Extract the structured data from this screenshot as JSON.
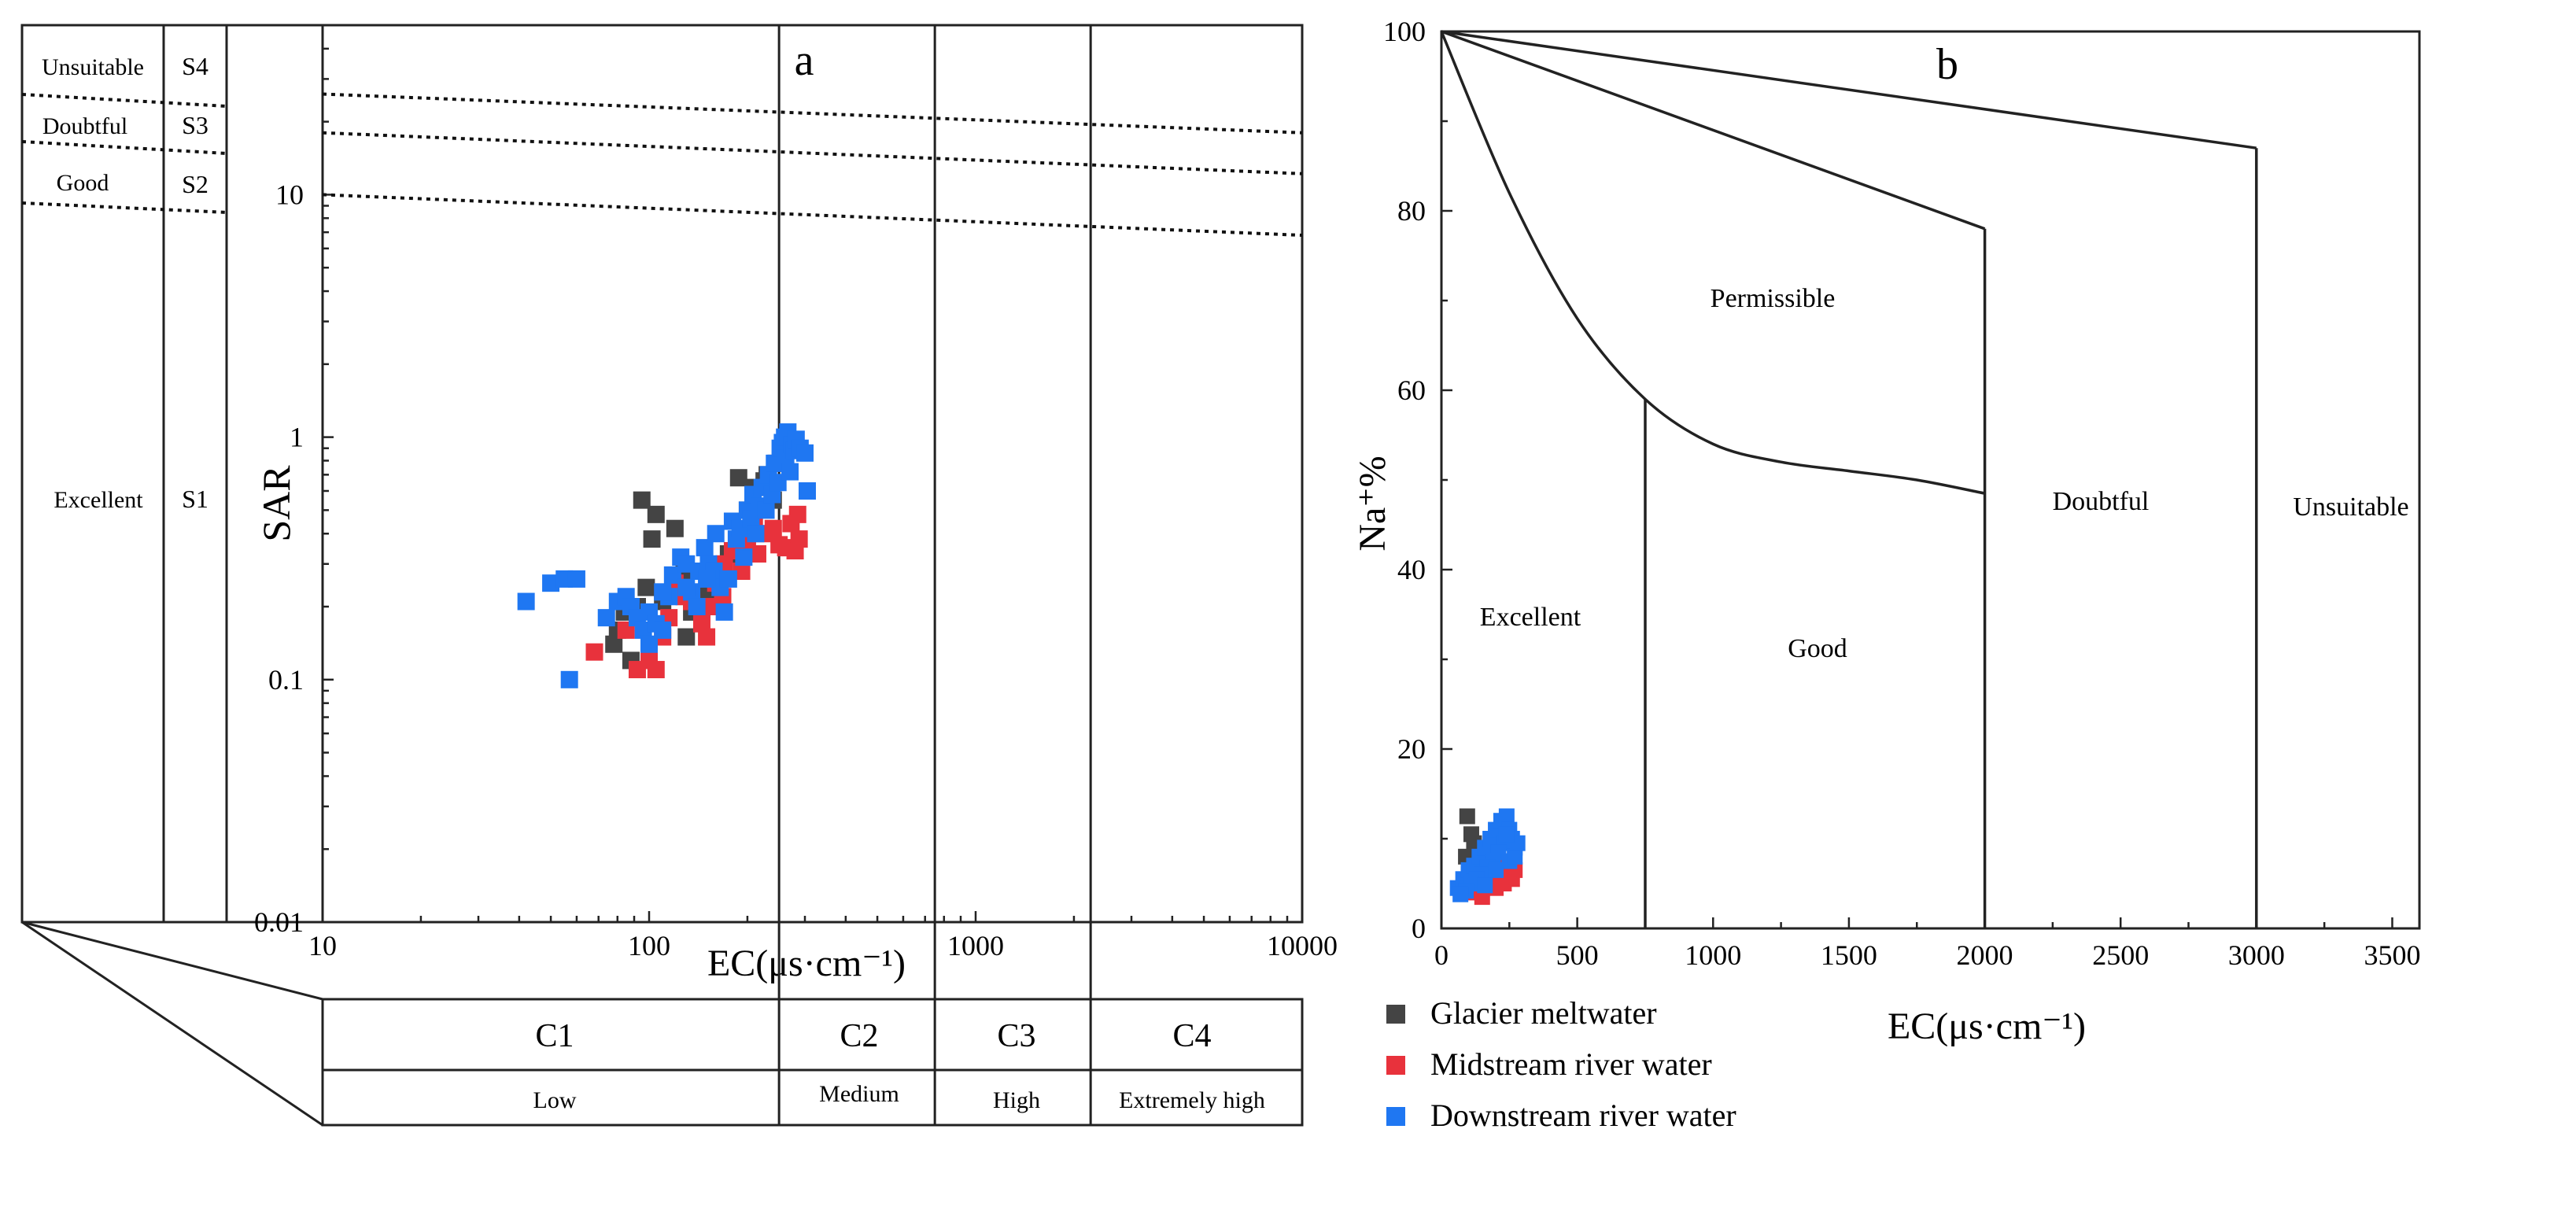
{
  "chart_data": [
    {
      "panel": "a",
      "type": "scatter",
      "xlabel": "EC(μs·cm⁻¹)",
      "ylabel": "SAR",
      "xscale": "log",
      "yscale": "log",
      "xlim": [
        10,
        10000
      ],
      "ylim": [
        0.01,
        50
      ],
      "xticks": [
        "10",
        "100",
        "1000",
        "10000"
      ],
      "yticks": [
        "0.01",
        "0.1",
        "1",
        "10"
      ],
      "x_boundaries": [
        250,
        750,
        2250
      ],
      "sodium_hazard_classes": [
        {
          "code": "S4",
          "label": "Unsuitable"
        },
        {
          "code": "S3",
          "label": "Doubtful"
        },
        {
          "code": "S2",
          "label": "Good"
        },
        {
          "code": "S1",
          "label": "Excellent"
        }
      ],
      "salinity_classes": [
        {
          "code": "C1",
          "label": "Low"
        },
        {
          "code": "C2",
          "label": "Medium"
        },
        {
          "code": "C3",
          "label": "High"
        },
        {
          "code": "C4",
          "label": "Extremely high"
        }
      ],
      "hazard_lines": [
        {
          "x": [
            10,
            10000
          ],
          "y": [
            26,
            18
          ]
        },
        {
          "x": [
            10,
            10000
          ],
          "y": [
            18,
            12.2
          ]
        },
        {
          "x": [
            10,
            10000
          ],
          "y": [
            10,
            6.8
          ]
        }
      ],
      "series": [
        {
          "name": "Glacier meltwater",
          "color": "#444444",
          "points": [
            [
              95,
              0.55
            ],
            [
              105,
              0.48
            ],
            [
              102,
              0.38
            ],
            [
              120,
              0.42
            ],
            [
              84,
              0.19
            ],
            [
              80,
              0.16
            ],
            [
              78,
              0.14
            ],
            [
              88,
              0.12
            ],
            [
              92,
              0.2
            ],
            [
              98,
              0.24
            ],
            [
              110,
              0.21
            ],
            [
              130,
              0.15
            ],
            [
              135,
              0.19
            ],
            [
              150,
              0.23
            ],
            [
              165,
              0.29
            ],
            [
              175,
              0.33
            ],
            [
              200,
              0.5
            ],
            [
              210,
              0.62
            ],
            [
              225,
              0.66
            ],
            [
              230,
              0.7
            ],
            [
              245,
              0.78
            ],
            [
              188,
              0.68
            ],
            [
              240,
              0.55
            ],
            [
              128,
              0.28
            ]
          ]
        },
        {
          "name": "Midstream river water",
          "color": "#e8323c",
          "points": [
            [
              68,
              0.13
            ],
            [
              85,
              0.16
            ],
            [
              92,
              0.11
            ],
            [
              100,
              0.12
            ],
            [
              105,
              0.11
            ],
            [
              110,
              0.15
            ],
            [
              115,
              0.18
            ],
            [
              120,
              0.25
            ],
            [
              128,
              0.22
            ],
            [
              135,
              0.21
            ],
            [
              145,
              0.17
            ],
            [
              150,
              0.15
            ],
            [
              155,
              0.2
            ],
            [
              160,
              0.25
            ],
            [
              170,
              0.3
            ],
            [
              180,
              0.34
            ],
            [
              190,
              0.36
            ],
            [
              200,
              0.37
            ],
            [
              215,
              0.33
            ],
            [
              225,
              0.4
            ],
            [
              240,
              0.42
            ],
            [
              250,
              0.36
            ],
            [
              262,
              0.35
            ],
            [
              272,
              0.44
            ],
            [
              280,
              0.34
            ],
            [
              285,
              0.48
            ],
            [
              288,
              0.38
            ],
            [
              168,
              0.22
            ],
            [
              192,
              0.28
            ],
            [
              210,
              0.45
            ]
          ]
        },
        {
          "name": "Downstream river water",
          "color": "#1f77f2",
          "points": [
            [
              42,
              0.21
            ],
            [
              50,
              0.25
            ],
            [
              55,
              0.26
            ],
            [
              60,
              0.26
            ],
            [
              57,
              0.1
            ],
            [
              74,
              0.18
            ],
            [
              80,
              0.21
            ],
            [
              85,
              0.22
            ],
            [
              88,
              0.2
            ],
            [
              92,
              0.18
            ],
            [
              96,
              0.16
            ],
            [
              100,
              0.14
            ],
            [
              100,
              0.19
            ],
            [
              105,
              0.17
            ],
            [
              110,
              0.16
            ],
            [
              115,
              0.22
            ],
            [
              118,
              0.27
            ],
            [
              125,
              0.32
            ],
            [
              130,
              0.3
            ],
            [
              135,
              0.23
            ],
            [
              140,
              0.2
            ],
            [
              142,
              0.28
            ],
            [
              148,
              0.35
            ],
            [
              152,
              0.3
            ],
            [
              158,
              0.28
            ],
            [
              160,
              0.4
            ],
            [
              165,
              0.24
            ],
            [
              170,
              0.19
            ],
            [
              175,
              0.26
            ],
            [
              180,
              0.45
            ],
            [
              185,
              0.38
            ],
            [
              190,
              0.42
            ],
            [
              195,
              0.32
            ],
            [
              200,
              0.5
            ],
            [
              205,
              0.46
            ],
            [
              208,
              0.58
            ],
            [
              212,
              0.4
            ],
            [
              218,
              0.52
            ],
            [
              222,
              0.62
            ],
            [
              228,
              0.5
            ],
            [
              232,
              0.7
            ],
            [
              238,
              0.58
            ],
            [
              242,
              0.78
            ],
            [
              248,
              0.65
            ],
            [
              252,
              0.9
            ],
            [
              256,
              0.95
            ],
            [
              260,
              1.0
            ],
            [
              262,
              0.82
            ],
            [
              266,
              1.05
            ],
            [
              270,
              0.72
            ],
            [
              274,
              0.93
            ],
            [
              278,
              0.88
            ],
            [
              282,
              0.98
            ],
            [
              290,
              0.9
            ],
            [
              300,
              0.86
            ],
            [
              305,
              0.6
            ],
            [
              110,
              0.23
            ],
            [
              130,
              0.24
            ],
            [
              150,
              0.26
            ]
          ]
        }
      ]
    },
    {
      "panel": "b",
      "type": "scatter",
      "xlabel": "EC(μs·cm⁻¹)",
      "ylabel": "Na⁺%",
      "xlim": [
        0,
        3600
      ],
      "ylim": [
        0,
        100
      ],
      "xticks": [
        0,
        500,
        1000,
        1500,
        2000,
        2500,
        3000,
        3500
      ],
      "yticks": [
        0,
        20,
        40,
        60,
        80,
        100
      ],
      "regions": [
        "Excellent",
        "Good",
        "Permissible",
        "Doubtful",
        "Unsuitable"
      ],
      "boundaries": [
        {
          "x": [
            0,
            250,
            500,
            750,
            1000,
            1250,
            1500,
            1750,
            2000
          ],
          "y": [
            100,
            82,
            68,
            59,
            54,
            52,
            51,
            50,
            48.5
          ]
        },
        {
          "x": [
            0,
            2000
          ],
          "y": [
            100,
            78
          ]
        },
        {
          "x": [
            0,
            3000
          ],
          "y": [
            100,
            87
          ]
        },
        {
          "x": [
            750,
            750
          ],
          "y": [
            0,
            59
          ]
        },
        {
          "x": [
            2000,
            2000
          ],
          "y": [
            0,
            78
          ]
        },
        {
          "x": [
            3000,
            3000
          ],
          "y": [
            0,
            87
          ]
        }
      ],
      "series": [
        {
          "name": "Glacier meltwater",
          "color": "#444444",
          "points": [
            [
              95,
              12.5
            ],
            [
              110,
              10.5
            ],
            [
              120,
              9.5
            ],
            [
              90,
              8
            ],
            [
              100,
              6
            ],
            [
              130,
              7.5
            ],
            [
              140,
              5.5
            ],
            [
              85,
              5
            ],
            [
              150,
              8.5
            ],
            [
              165,
              6.5
            ]
          ]
        },
        {
          "name": "Midstream river water",
          "color": "#e8323c",
          "points": [
            [
              100,
              4
            ],
            [
              150,
              3.5
            ],
            [
              200,
              4.5
            ],
            [
              230,
              5
            ],
            [
              260,
              5.5
            ],
            [
              180,
              6
            ],
            [
              120,
              4.8
            ],
            [
              210,
              6.2
            ],
            [
              240,
              7
            ],
            [
              270,
              6.5
            ]
          ]
        },
        {
          "name": "Downstream river water",
          "color": "#1f77f2",
          "points": [
            [
              60,
              4.5
            ],
            [
              80,
              5.5
            ],
            [
              100,
              6.5
            ],
            [
              120,
              7
            ],
            [
              140,
              8
            ],
            [
              160,
              9
            ],
            [
              180,
              10
            ],
            [
              200,
              11
            ],
            [
              220,
              12
            ],
            [
              240,
              12.5
            ],
            [
              250,
              11
            ],
            [
              260,
              10
            ],
            [
              270,
              9
            ],
            [
              230,
              9.5
            ],
            [
              210,
              8.5
            ],
            [
              190,
              7.5
            ],
            [
              170,
              6.8
            ],
            [
              150,
              6
            ],
            [
              130,
              5.5
            ],
            [
              110,
              5
            ],
            [
              90,
              4.2
            ],
            [
              70,
              3.8
            ],
            [
              250,
              7.5
            ],
            [
              270,
              8
            ],
            [
              280,
              9.5
            ],
            [
              200,
              6.5
            ],
            [
              160,
              4.8
            ],
            [
              240,
              10.5
            ]
          ]
        }
      ]
    }
  ]
}
